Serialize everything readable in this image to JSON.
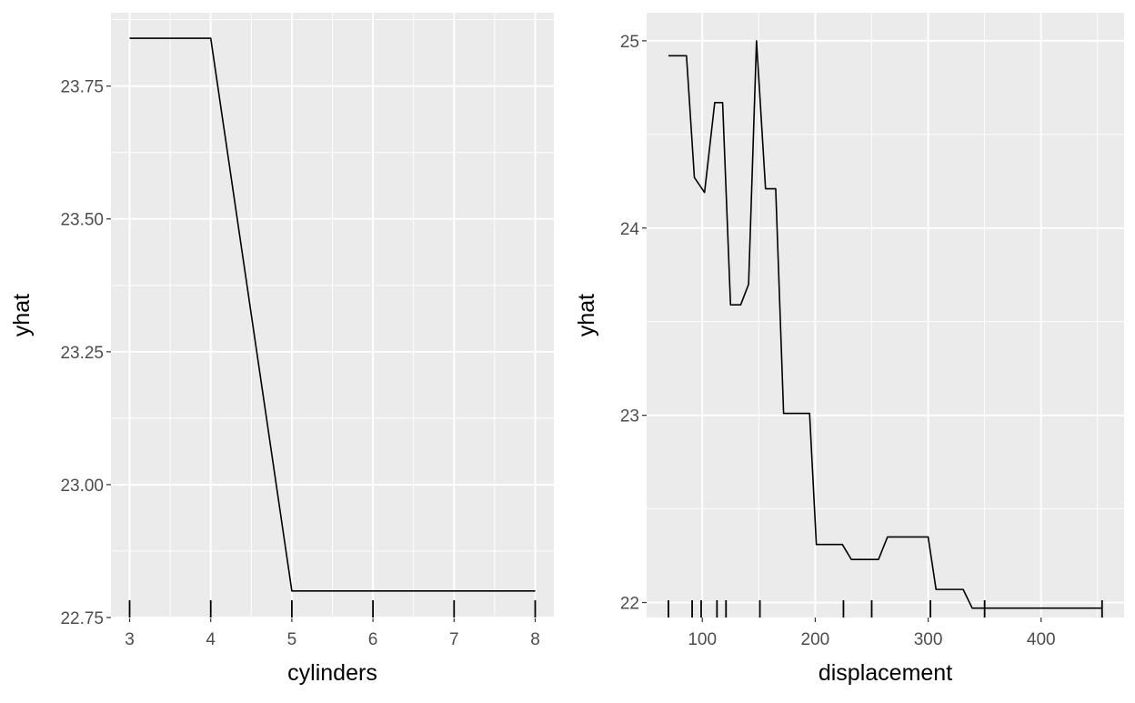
{
  "chart_data": [
    {
      "type": "line",
      "xlabel": "cylinders",
      "ylabel": "yhat",
      "xlim": [
        2.77,
        8.23
      ],
      "ylim": [
        22.75,
        23.888
      ],
      "x_ticks": [
        3,
        4,
        5,
        6,
        7,
        8
      ],
      "y_ticks": [
        22.75,
        23.0,
        23.25,
        23.5,
        23.75
      ],
      "y_tick_labels": [
        "22.75",
        "23.00",
        "23.25",
        "23.50",
        "23.75"
      ],
      "grid": true,
      "series": [
        {
          "x": [
            3,
            4,
            5,
            6,
            7,
            8
          ],
          "y": [
            23.84,
            23.84,
            22.8,
            22.8,
            22.8,
            22.8
          ]
        }
      ],
      "rug": [
        3,
        4,
        5,
        6,
        7,
        8
      ]
    },
    {
      "type": "line",
      "xlabel": "displacement",
      "ylabel": "yhat",
      "xlim": [
        50.7,
        473.5
      ],
      "ylim": [
        21.92,
        25.15
      ],
      "x_ticks": [
        100,
        200,
        300,
        400
      ],
      "y_ticks": [
        22,
        23,
        24,
        25
      ],
      "y_tick_labels": [
        "22",
        "23",
        "24",
        "25"
      ],
      "grid": true,
      "series": [
        {
          "x": [
            70,
            86,
            93,
            102,
            111,
            118,
            125,
            134,
            141,
            148,
            156,
            165,
            172,
            195,
            201,
            224,
            232,
            256,
            264,
            300,
            307,
            331,
            339,
            454
          ],
          "y": [
            24.92,
            24.92,
            24.27,
            24.19,
            24.67,
            24.67,
            23.59,
            23.59,
            23.7,
            25.0,
            24.21,
            24.21,
            23.01,
            23.01,
            22.31,
            22.31,
            22.23,
            22.23,
            22.35,
            22.35,
            22.07,
            22.07,
            21.97,
            21.97
          ]
        }
      ],
      "rug": [
        70,
        91,
        99,
        113,
        121,
        151,
        225,
        250,
        302,
        350,
        454
      ]
    }
  ]
}
